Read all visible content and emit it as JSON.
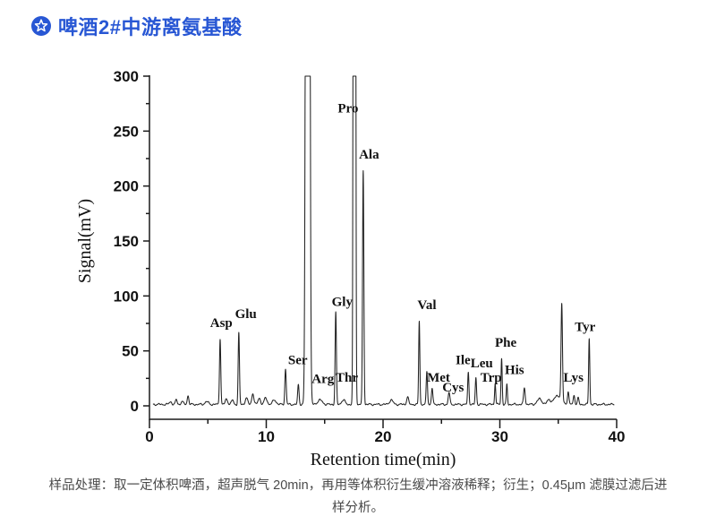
{
  "header": {
    "icon": "circled-star-icon",
    "title": "啤酒2#中游离氨基酸",
    "accent_color": "#2857d4"
  },
  "caption": {
    "text": "样品处理：取一定体积啤酒，超声脱气 20min，再用等体积衍生缓冲溶液稀释；衍生；0.45μm 滤膜过滤后进样分析。"
  },
  "chart_data": {
    "type": "line",
    "title": "",
    "xlabel": "Retention time(min)",
    "ylabel": "Signal(mV)",
    "xlim": [
      0,
      40
    ],
    "ylim": [
      0,
      300
    ],
    "x_major_ticks": [
      0,
      10,
      20,
      30,
      40
    ],
    "x_minor_ticks": [
      5,
      15,
      25,
      35
    ],
    "y_major_ticks": [
      0,
      50,
      100,
      150,
      200,
      250,
      300
    ],
    "y_minor_ticks": [
      25,
      75,
      125,
      175,
      225,
      275
    ],
    "grid": false,
    "legend": false,
    "line_color": "#222222",
    "axis_color": "#1a1a1a",
    "baseline_mv": 1.3,
    "note": "peaks are [retention_time_min, height_mV, sigma_min]; heights > 300 are clipped at the 300 mV plot top",
    "peaks": [
      [
        1.8,
        2.5,
        0.1
      ],
      [
        2.3,
        4,
        0.08
      ],
      [
        2.8,
        3,
        0.08
      ],
      [
        3.3,
        8,
        0.07
      ],
      [
        4.9,
        2.5,
        0.15
      ],
      [
        6.05,
        60,
        0.055
      ],
      [
        6.6,
        5,
        0.1
      ],
      [
        7.1,
        4,
        0.09
      ],
      [
        7.65,
        65,
        0.055
      ],
      [
        8.3,
        6,
        0.1
      ],
      [
        8.85,
        10,
        0.09
      ],
      [
        9.4,
        6,
        0.1
      ],
      [
        9.95,
        6,
        0.12
      ],
      [
        10.7,
        4,
        0.15
      ],
      [
        11.65,
        32,
        0.06
      ],
      [
        12.75,
        18,
        0.06
      ],
      [
        13.55,
        3000,
        0.105
      ],
      [
        14.6,
        4,
        0.2
      ],
      [
        15.95,
        84,
        0.055
      ],
      [
        16.6,
        4,
        0.15
      ],
      [
        17.55,
        3000,
        0.062
      ],
      [
        18.3,
        213,
        0.055
      ],
      [
        20.7,
        4,
        0.15
      ],
      [
        22.1,
        7,
        0.08
      ],
      [
        23.1,
        76,
        0.05
      ],
      [
        23.75,
        30,
        0.055
      ],
      [
        24.2,
        15,
        0.06
      ],
      [
        25.65,
        11,
        0.07
      ],
      [
        27.3,
        29,
        0.055
      ],
      [
        27.95,
        24,
        0.055
      ],
      [
        29.6,
        19,
        0.05
      ],
      [
        30.15,
        42,
        0.05
      ],
      [
        30.6,
        18,
        0.05
      ],
      [
        32.1,
        15,
        0.07
      ],
      [
        33.4,
        5,
        0.2
      ],
      [
        34.2,
        4,
        0.15
      ],
      [
        34.95,
        8,
        0.3
      ],
      [
        35.3,
        87,
        0.06
      ],
      [
        35.85,
        12,
        0.06
      ],
      [
        36.35,
        8,
        0.07
      ],
      [
        36.7,
        6,
        0.06
      ],
      [
        37.65,
        60,
        0.05
      ]
    ],
    "peak_labels": [
      {
        "text": "Asp",
        "rt": 6.15,
        "mv": 76
      },
      {
        "text": "Glu",
        "rt": 8.25,
        "mv": 84
      },
      {
        "text": "Ser",
        "rt": 12.7,
        "mv": 42
      },
      {
        "text": "Arg",
        "rt": 14.85,
        "mv": 25
      },
      {
        "text": "Thr",
        "rt": 16.9,
        "mv": 26
      },
      {
        "text": "Gly",
        "rt": 16.5,
        "mv": 95
      },
      {
        "text": "Pro",
        "rt": 17.0,
        "mv": 271
      },
      {
        "text": "Ala",
        "rt": 18.8,
        "mv": 229
      },
      {
        "text": "Val",
        "rt": 23.75,
        "mv": 92
      },
      {
        "text": "Met",
        "rt": 24.75,
        "mv": 26
      },
      {
        "text": "Cys",
        "rt": 26.0,
        "mv": 17
      },
      {
        "text": "Ile",
        "rt": 26.85,
        "mv": 42
      },
      {
        "text": "Leu",
        "rt": 28.45,
        "mv": 39
      },
      {
        "text": "Trp",
        "rt": 29.25,
        "mv": 26
      },
      {
        "text": "Phe",
        "rt": 30.5,
        "mv": 58
      },
      {
        "text": "His",
        "rt": 31.25,
        "mv": 33
      },
      {
        "text": "Lys",
        "rt": 36.3,
        "mv": 26
      },
      {
        "text": "Tyr",
        "rt": 37.3,
        "mv": 72
      }
    ]
  }
}
